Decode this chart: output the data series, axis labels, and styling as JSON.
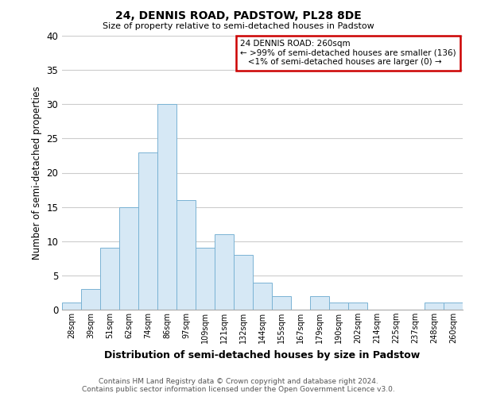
{
  "title": "24, DENNIS ROAD, PADSTOW, PL28 8DE",
  "subtitle": "Size of property relative to semi-detached houses in Padstow",
  "xlabel": "Distribution of semi-detached houses by size in Padstow",
  "ylabel": "Number of semi-detached properties",
  "bar_color": "#d6e8f5",
  "bar_edge_color": "#7ab3d4",
  "background_color": "#ffffff",
  "grid_color": "#cccccc",
  "annotation_box_color": "#cc0000",
  "annotation_line1": "24 DENNIS ROAD: 260sqm",
  "annotation_line2": "← >99% of semi-detached houses are smaller (136)",
  "annotation_line3": "<1% of semi-detached houses are larger (0) →",
  "bin_labels": [
    "28sqm",
    "39sqm",
    "51sqm",
    "62sqm",
    "74sqm",
    "86sqm",
    "97sqm",
    "109sqm",
    "121sqm",
    "132sqm",
    "144sqm",
    "155sqm",
    "167sqm",
    "179sqm",
    "190sqm",
    "202sqm",
    "214sqm",
    "225sqm",
    "237sqm",
    "248sqm",
    "260sqm"
  ],
  "bar_heights": [
    1,
    3,
    9,
    15,
    23,
    30,
    16,
    9,
    11,
    8,
    4,
    2,
    0,
    2,
    1,
    1,
    0,
    0,
    0,
    1,
    1
  ],
  "ylim": [
    0,
    40
  ],
  "yticks": [
    0,
    5,
    10,
    15,
    20,
    25,
    30,
    35,
    40
  ],
  "footer_line1": "Contains HM Land Registry data © Crown copyright and database right 2024.",
  "footer_line2": "Contains public sector information licensed under the Open Government Licence v3.0."
}
